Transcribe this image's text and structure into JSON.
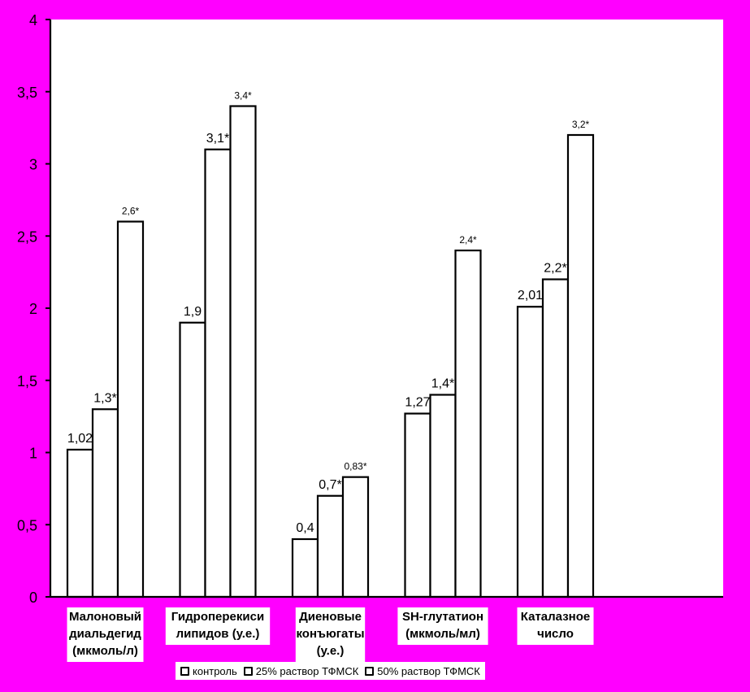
{
  "colors": {
    "background": "#ff00ff",
    "plot_area": "#ffffff",
    "bar_fill": "#ffffff",
    "bar_stroke": "#000000",
    "text": "#000000"
  },
  "chart_data": {
    "type": "bar",
    "title": "",
    "xlabel": "",
    "ylabel": "",
    "ylim": [
      0,
      4
    ],
    "yticks": [
      0,
      0.5,
      1,
      1.5,
      2,
      2.5,
      3,
      3.5,
      4
    ],
    "ytick_labels": [
      "0",
      "0,5",
      "1",
      "1,5",
      "2",
      "2,5",
      "3",
      "3,5",
      "4"
    ],
    "grid": false,
    "legend_position": "bottom",
    "categories": [
      [
        "Малоновый",
        "диальдегид",
        "(мкмоль/л)"
      ],
      [
        "Гидроперекиси",
        "липидов (у.е.)"
      ],
      [
        "Диеновые",
        "конъюгаты",
        "(у.е.)"
      ],
      [
        "SH-глутатион",
        "(мкмоль/мл)"
      ],
      [
        "Каталазное",
        "число"
      ]
    ],
    "series": [
      {
        "name": "контроль",
        "values": [
          1.02,
          1.9,
          0.4,
          1.27,
          2.01
        ],
        "labels": [
          "1,02",
          "1,9",
          "0,4",
          "1,27",
          "2,01"
        ]
      },
      {
        "name": "25% раствор ТФМСК",
        "values": [
          1.3,
          3.1,
          0.7,
          1.4,
          2.2
        ],
        "labels": [
          "1,3*",
          "3,1*",
          "0,7*",
          "1,4*",
          "2,2*"
        ]
      },
      {
        "name": "50% раствор ТФМСК",
        "values": [
          2.6,
          3.4,
          0.83,
          2.4,
          3.2
        ],
        "labels": [
          "2,6*",
          "3,4*",
          "0,83*",
          "2,4*",
          "3,2*"
        ]
      }
    ]
  }
}
